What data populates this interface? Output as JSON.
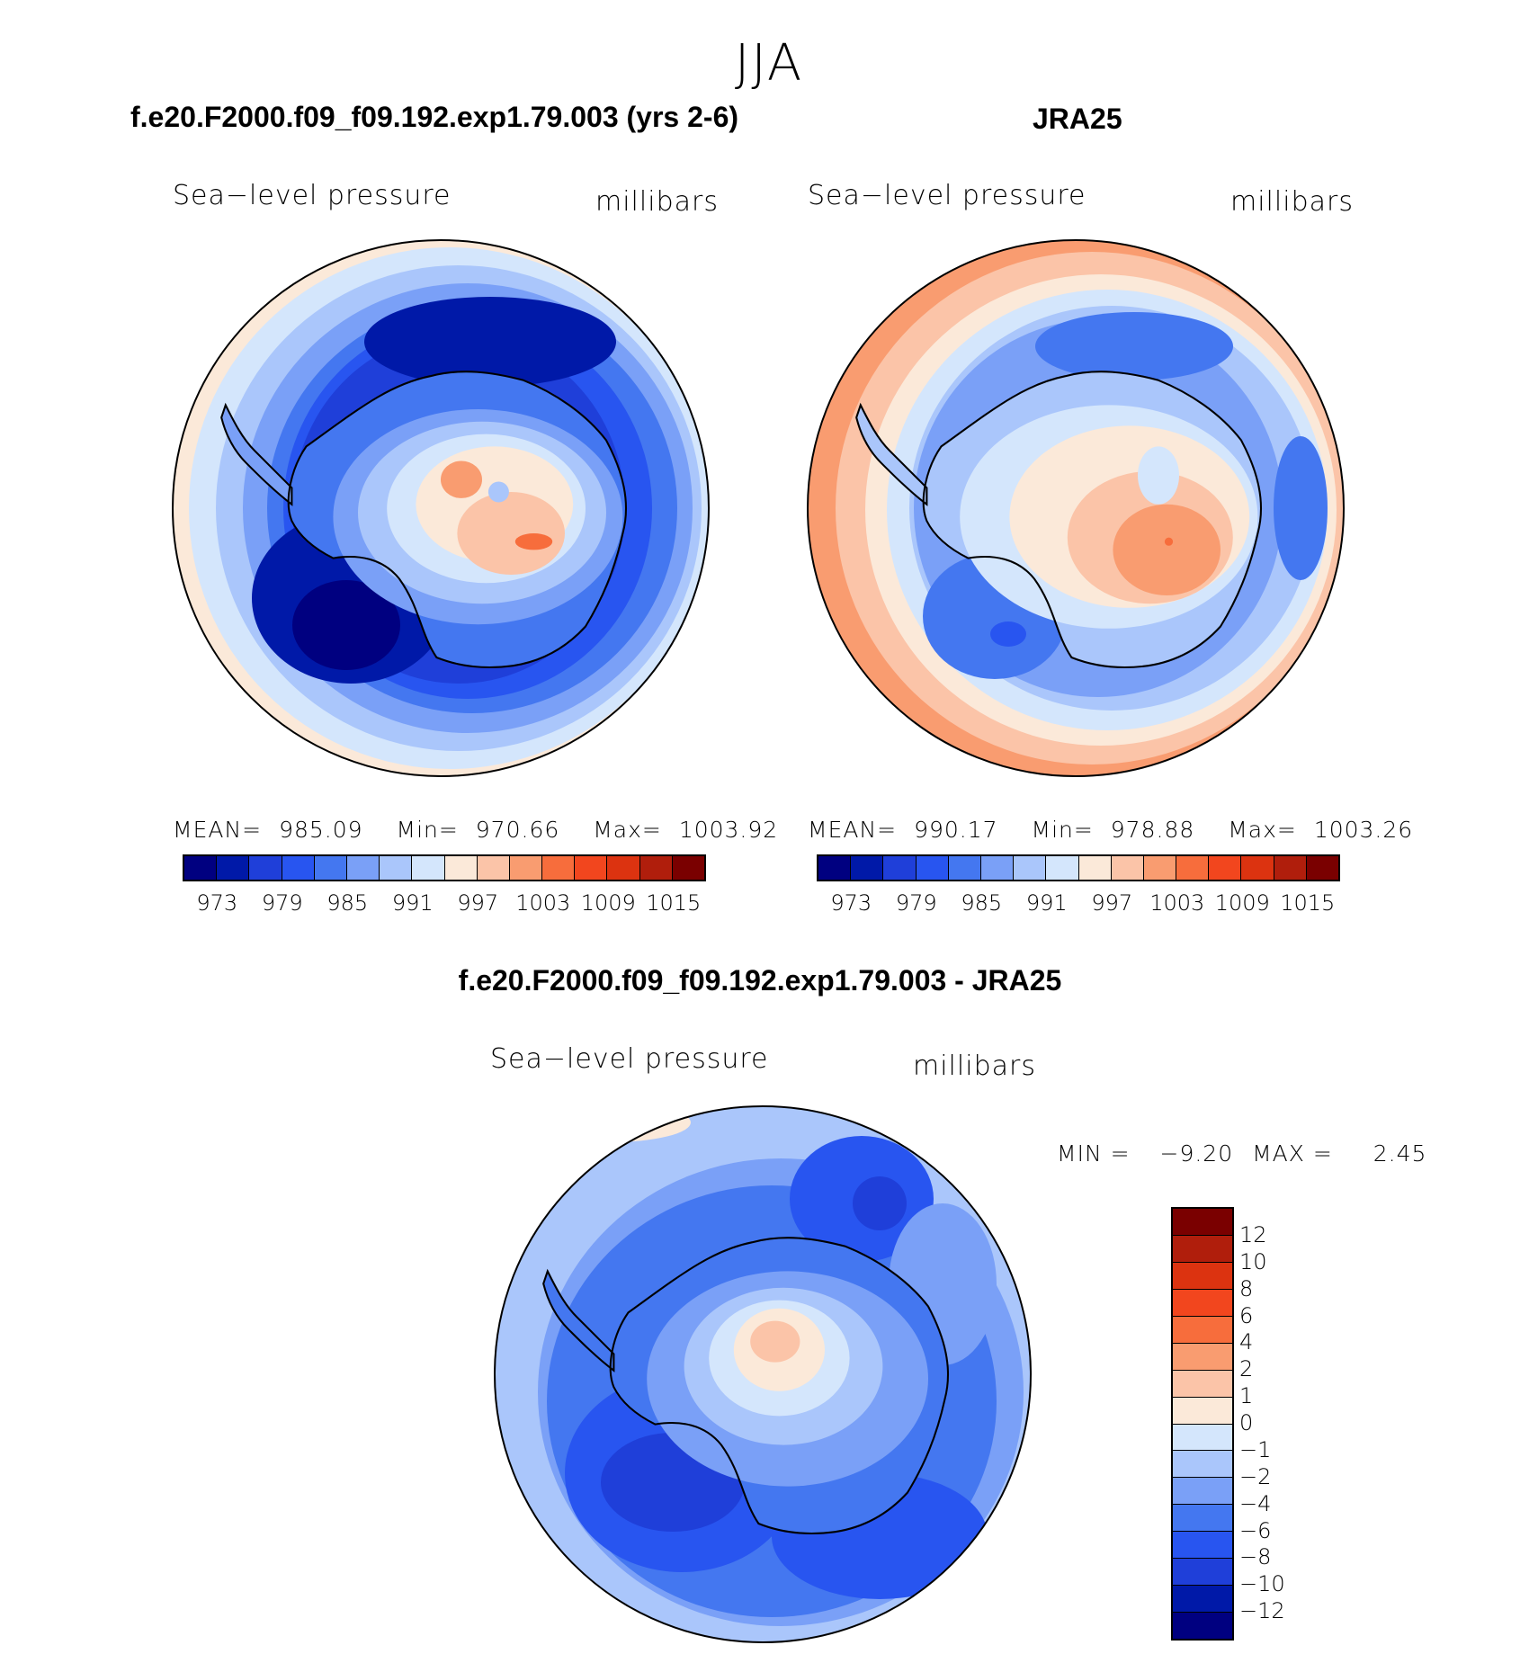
{
  "figure": {
    "season": "JJA",
    "var_label": "Sea−level pressure",
    "units": "millibars"
  },
  "panel_model": {
    "title": "f.e20.F2000.f09_f09.192.exp1.79.003 (yrs 2-6)",
    "mean_label": "MEAN=",
    "mean": "985.09",
    "min_label": "Min=",
    "min": "970.66",
    "max_label": "Max=",
    "max": "1003.92"
  },
  "panel_obs": {
    "title": "JRA25",
    "mean_label": "MEAN=",
    "mean": "990.17",
    "min_label": "Min=",
    "min": "978.88",
    "max_label": "Max=",
    "max": "1003.26"
  },
  "panel_diff": {
    "title": "f.e20.F2000.f09_f09.192.exp1.79.003 - JRA25",
    "min_label": "MIN =",
    "min": "−9.20",
    "max_label": "MAX =",
    "max": "2.45"
  },
  "colorbar_abs": {
    "colors": [
      "#000080",
      "#0019a8",
      "#1f3fd9",
      "#2855f0",
      "#4477f0",
      "#7aa0f7",
      "#aac6fb",
      "#d4e6fc",
      "#fbe9d9",
      "#fbc4a8",
      "#f99c70",
      "#f76d3c",
      "#f2461e",
      "#dc3310",
      "#b01e0c",
      "#7a0000"
    ],
    "ticks": [
      "973",
      "979",
      "985",
      "991",
      "997",
      "1003",
      "1009",
      "1015"
    ]
  },
  "colorbar_diff": {
    "colors": [
      "#7a0000",
      "#b01e0c",
      "#dc3310",
      "#f2461e",
      "#f76d3c",
      "#f99c70",
      "#fbc4a8",
      "#fbe9d9",
      "#d4e6fc",
      "#aac6fb",
      "#7aa0f7",
      "#4477f0",
      "#2855f0",
      "#1f3fd9",
      "#0019a8",
      "#000080"
    ],
    "ticks": [
      "12",
      "10",
      "8",
      "6",
      "4",
      "2",
      "1",
      "0",
      "−1",
      "−2",
      "−4",
      "−6",
      "−8",
      "−10",
      "−12"
    ]
  },
  "chart_data": [
    {
      "type": "map",
      "projection": "south-polar-stereographic",
      "title": "f.e20.F2000.f09_f09.192.exp1.79.003 (yrs 2-6)",
      "variable": "Sea-level pressure",
      "units": "millibars",
      "mean": 985.09,
      "min": 970.66,
      "max": 1003.92,
      "contour_levels": [
        973,
        976,
        979,
        982,
        985,
        988,
        991,
        994,
        997,
        1000,
        1003,
        1006,
        1009,
        1012,
        1015
      ]
    },
    {
      "type": "map",
      "projection": "south-polar-stereographic",
      "title": "JRA25",
      "variable": "Sea-level pressure",
      "units": "millibars",
      "mean": 990.17,
      "min": 978.88,
      "max": 1003.26,
      "contour_levels": [
        973,
        976,
        979,
        982,
        985,
        988,
        991,
        994,
        997,
        1000,
        1003,
        1006,
        1009,
        1012,
        1015
      ]
    },
    {
      "type": "map",
      "projection": "south-polar-stereographic",
      "title": "f.e20.F2000.f09_f09.192.exp1.79.003 - JRA25",
      "variable": "Sea-level pressure",
      "units": "millibars",
      "min": -9.2,
      "max": 2.45,
      "contour_levels": [
        -12,
        -10,
        -8,
        -6,
        -4,
        -2,
        -1,
        0,
        1,
        2,
        4,
        6,
        8,
        10,
        12
      ]
    }
  ]
}
